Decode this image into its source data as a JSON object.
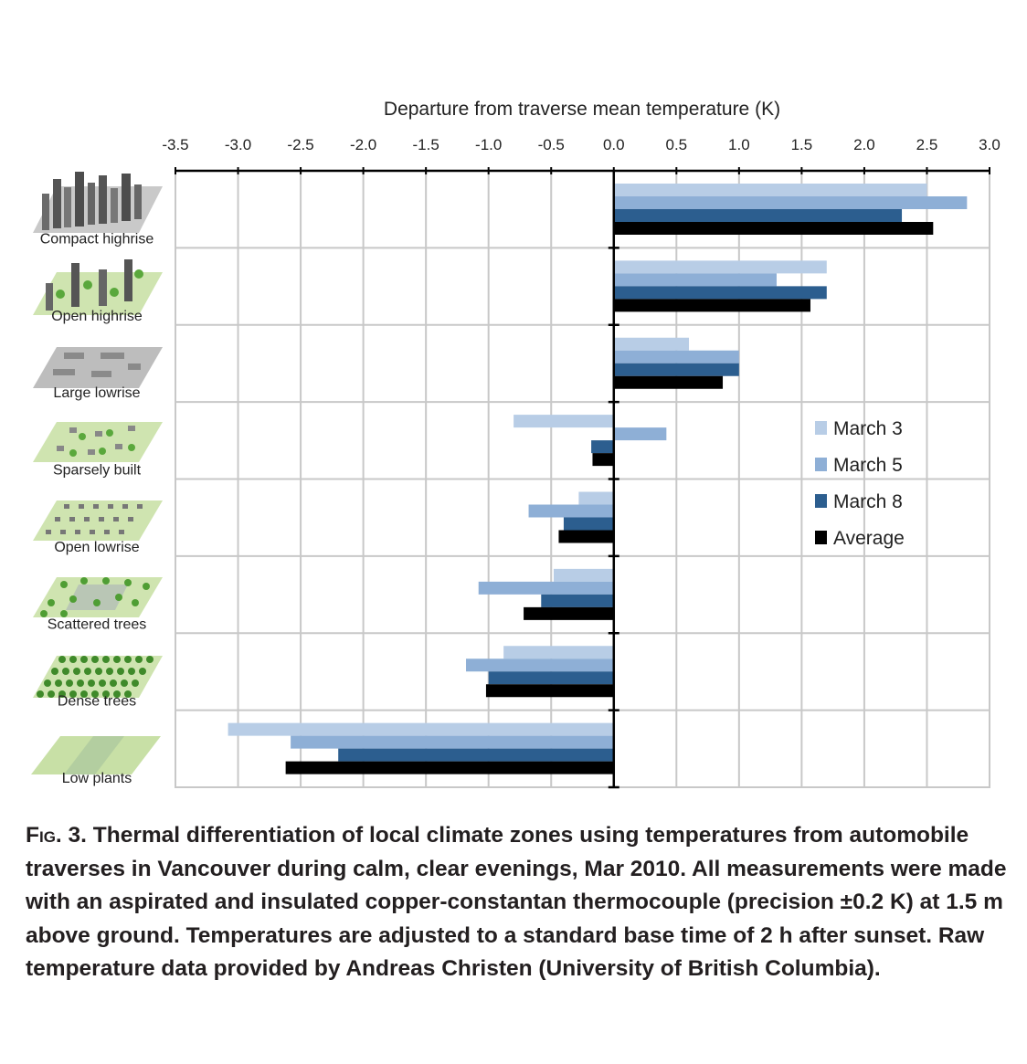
{
  "chart_data": {
    "type": "bar",
    "orientation": "horizontal",
    "title": "Departure from traverse mean temperature (K)",
    "xlabel": "Departure from traverse mean temperature (K)",
    "ylabel": "",
    "xlim": [
      -3.5,
      3.0
    ],
    "x_ticks": [
      "-3.5",
      "-3.0",
      "-2.5",
      "-2.0",
      "-1.5",
      "-1.0",
      "-0.5",
      "0.0",
      "0.5",
      "1.0",
      "1.5",
      "2.0",
      "2.5",
      "3.0"
    ],
    "x_tick_values": [
      -3.5,
      -3.0,
      -2.5,
      -2.0,
      -1.5,
      -1.0,
      -0.5,
      0.0,
      0.5,
      1.0,
      1.5,
      2.0,
      2.5,
      3.0
    ],
    "grid": true,
    "legend_position": "right",
    "categories": [
      "Compact highrise",
      "Open highrise",
      "Large lowrise",
      "Sparsely built",
      "Open lowrise",
      "Scattered trees",
      "Dense trees",
      "Low plants"
    ],
    "series": [
      {
        "name": "March 3",
        "color": "#b8cde6",
        "values": [
          2.5,
          1.7,
          0.6,
          -0.8,
          -0.28,
          -0.48,
          -0.88,
          -3.08
        ]
      },
      {
        "name": "March 5",
        "color": "#8eafd6",
        "values": [
          2.82,
          1.3,
          1.0,
          0.42,
          -0.68,
          -1.08,
          -1.18,
          -2.58
        ]
      },
      {
        "name": "March 8",
        "color": "#2c5e8f",
        "values": [
          2.3,
          1.7,
          1.0,
          -0.18,
          -0.4,
          -0.58,
          -1.0,
          -2.2
        ]
      },
      {
        "name": "Average",
        "color": "#000000",
        "values": [
          2.55,
          1.57,
          0.87,
          -0.17,
          -0.44,
          -0.72,
          -1.02,
          -2.62
        ]
      }
    ]
  },
  "caption": {
    "fig_label": "Fig. 3.",
    "text": " Thermal differentiation of local climate zones using temperatures from automobile traverses in Vancouver during calm, clear evenings, Mar 2010. All measurements were made with an aspirated and insulated copper-constantan thermocouple (precision ±0.2 K) at 1.5 m above ground. Temperatures are adjusted to a standard base time of 2 h after sunset. Raw temperature data provided by Andreas Christen (University of British Columbia)."
  }
}
